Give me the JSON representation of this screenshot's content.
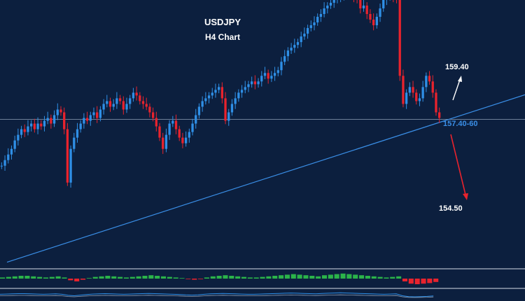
{
  "chart_data": {
    "type": "candlestick",
    "title": "USDJPY",
    "subtitle": "H4 Chart",
    "colors": {
      "background": "#0c1f3e",
      "bull": "#2f8fe6",
      "bear": "#e8232d",
      "trendline": "#3a8ee6",
      "support_label": "#3a8ee6",
      "text": "#ffffff",
      "down_arrow": "#e8232d",
      "up_arrow": "#ffffff",
      "hline": "#8fa0b8",
      "osc_pos": "#2bb34a",
      "osc_neg": "#e8232d"
    },
    "ylim": [
      153.9,
      161.0
    ],
    "current_level": 157.25,
    "close_series": [
      155.6,
      155.8,
      156.0,
      156.2,
      156.5,
      156.7,
      156.9,
      156.8,
      157.0,
      157.1,
      156.9,
      157.1,
      157.0,
      157.2,
      157.3,
      157.1,
      157.4,
      157.6,
      157.5,
      156.9,
      155.0,
      156.2,
      156.6,
      156.9,
      157.1,
      157.3,
      157.2,
      157.4,
      157.5,
      157.3,
      157.6,
      157.8,
      157.9,
      157.7,
      157.8,
      158.0,
      157.9,
      157.6,
      157.8,
      158.0,
      158.2,
      158.1,
      157.9,
      157.8,
      157.7,
      157.5,
      157.3,
      157.0,
      156.6,
      156.2,
      156.7,
      157.1,
      157.2,
      156.9,
      156.6,
      156.4,
      156.6,
      156.8,
      157.1,
      157.4,
      157.7,
      157.9,
      158.0,
      158.1,
      158.2,
      158.3,
      158.4,
      158.0,
      157.2,
      157.5,
      157.8,
      158.0,
      158.2,
      158.3,
      158.4,
      158.5,
      158.6,
      158.5,
      158.6,
      158.8,
      158.9,
      158.7,
      158.8,
      158.9,
      159.0,
      159.3,
      159.5,
      159.7,
      159.8,
      159.9,
      160.0,
      160.2,
      160.3,
      160.5,
      160.6,
      160.7,
      160.9,
      161.0,
      161.2,
      161.3,
      161.4,
      161.5,
      161.6,
      161.6,
      161.7,
      161.8,
      161.7,
      161.6,
      161.5,
      161.2,
      161.3,
      161.0,
      160.8,
      160.6,
      160.9,
      161.2,
      161.5,
      161.6,
      161.7,
      161.6,
      161.5,
      158.8,
      157.8,
      158.2,
      158.4,
      158.2,
      157.9,
      158.0,
      158.4,
      158.8,
      158.6,
      158.2,
      157.5,
      157.3
    ],
    "trendline": {
      "from": [
        0,
        153.9
      ],
      "to": [
        140,
        159.2
      ]
    },
    "annotations": [
      {
        "label": "159.40",
        "direction": "up"
      },
      {
        "label": "157.40-60",
        "role": "support"
      },
      {
        "label": "154.50",
        "direction": "down"
      }
    ],
    "oscillator": [
      0.2,
      0.3,
      0.4,
      0.5,
      0.5,
      0.4,
      0.3,
      0.2,
      0.3,
      0.4,
      0.2,
      -0.3,
      -0.5,
      -0.2,
      0.1,
      0.3,
      0.4,
      0.5,
      0.4,
      0.3,
      0.2,
      0.3,
      0.4,
      0.5,
      0.6,
      0.5,
      0.4,
      0.3,
      0.2,
      0.1,
      -0.1,
      -0.2,
      -0.1,
      0.2,
      0.4,
      0.5,
      0.6,
      0.5,
      0.4,
      0.3,
      0.2,
      0.2,
      0.3,
      0.4,
      0.5,
      0.6,
      0.7,
      0.8,
      0.7,
      0.6,
      0.5,
      0.4,
      0.6,
      0.7,
      0.8,
      0.9,
      0.8,
      0.7,
      0.6,
      0.5,
      0.4,
      0.3,
      0.2,
      0.3,
      0.4,
      -0.5,
      -0.9,
      -1.0,
      -0.9,
      -0.8,
      -0.6
    ]
  }
}
